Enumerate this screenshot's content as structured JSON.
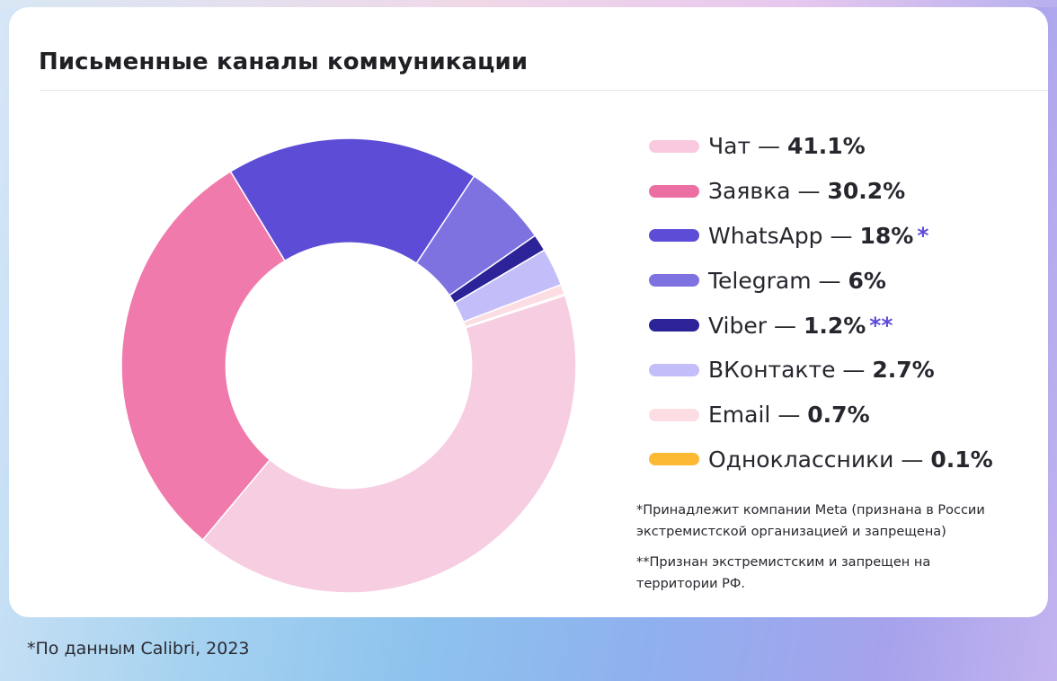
{
  "title": "Письменные каналы коммуникации",
  "chart_data": {
    "type": "pie",
    "title": "Письменные каналы коммуникации",
    "inner_radius_ratio": 0.54,
    "start_angle_deg": 72,
    "slices": [
      {
        "label": "Чат",
        "value": 41.1,
        "display": "41.1%",
        "color": "#f7cde2",
        "legend_color": "#f9c9df",
        "note": ""
      },
      {
        "label": "Заявка",
        "value": 30.2,
        "display": "30.2%",
        "color": "#f07aab",
        "legend_color": "#ec6fa4",
        "note": ""
      },
      {
        "label": "WhatsApp",
        "value": 18,
        "display": "18%",
        "color": "#5d4dd6",
        "legend_color": "#5d4dd6",
        "note": "*"
      },
      {
        "label": "Telegram",
        "value": 6,
        "display": "6%",
        "color": "#7e72e0",
        "legend_color": "#7e72e0",
        "note": ""
      },
      {
        "label": "Viber",
        "value": 1.2,
        "display": "1.2%",
        "color": "#2b2397",
        "legend_color": "#2b2397",
        "note": "**"
      },
      {
        "label": "ВКонтакте",
        "value": 2.7,
        "display": "2.7%",
        "color": "#c3bdfa",
        "legend_color": "#c3bdfa",
        "note": ""
      },
      {
        "label": "Email",
        "value": 0.7,
        "display": "0.7%",
        "color": "#fbdde3",
        "legend_color": "#fbdde3",
        "note": ""
      },
      {
        "label": "Одноклассники",
        "value": 0.1,
        "display": "0.1%",
        "color": "#fbb934",
        "legend_color": "#fbb934",
        "note": ""
      }
    ]
  },
  "legend_separator": " — ",
  "notes": [
    "*Принадлежит компании Meta (признана в России экстремистской организацией и запрещена)",
    "**Признан экстремистским и запрещен на территории РФ."
  ],
  "source": "*По данным Calibri, 2023"
}
